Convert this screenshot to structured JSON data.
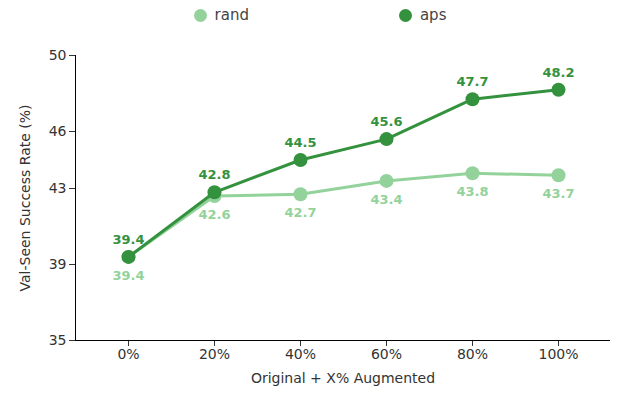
{
  "chart_data": {
    "type": "line",
    "x_label": "Original + X% Augmented",
    "y_label": "Val-Seen Success Rate (%)",
    "categories": [
      "0%",
      "20%",
      "40%",
      "60%",
      "80%",
      "100%"
    ],
    "series": [
      {
        "name": "rand",
        "color": "#93d39b",
        "values": [
          39.4,
          42.6,
          42.7,
          43.4,
          43.8,
          43.7
        ]
      },
      {
        "name": "aps",
        "color": "#34923f",
        "values": [
          39.4,
          42.8,
          44.5,
          45.6,
          47.7,
          48.2
        ]
      }
    ],
    "ylim": [
      35,
      50
    ],
    "yticks": [
      35,
      39,
      43,
      46,
      50
    ],
    "grid": false,
    "legend": "top",
    "data_labels": true,
    "marker": "circle"
  }
}
